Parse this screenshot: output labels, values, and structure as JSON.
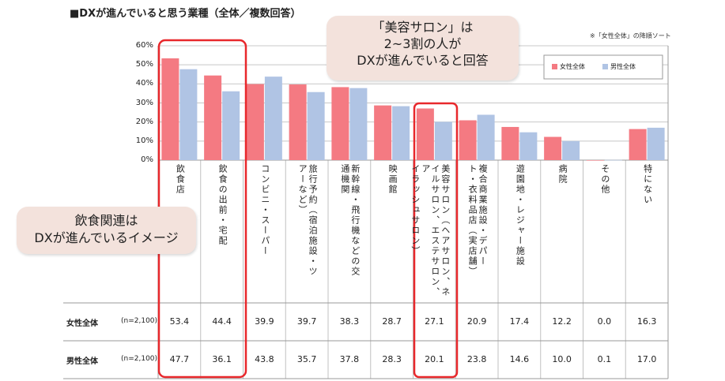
{
  "header": {
    "title": "■DXが進んでいると思う業種（全体／複数回答）",
    "sort_note": "※「女性全体」の降順ソート"
  },
  "callouts": {
    "salon": "「美容サロン」は\n2~3割の人が\nDXが進んでいると回答",
    "food": "飲食関連は\nDXが進んでいるイメージ"
  },
  "chart_data": {
    "type": "bar",
    "categories": [
      "飲食店",
      "飲食の出前・宅配",
      "コンビニ・スーパー",
      "旅行予約（宿泊施設・ツアーなど）",
      "新幹線・飛行機などの交通機関",
      "映画館",
      "美容サロン（ヘアサロン、ネイルサロン、エステサロン、アイラッシュサロン）",
      "複合商業施設・デパート・衣料品店（実店舗）",
      "遊園地・レジャー施設",
      "病院",
      "その他",
      "特にない"
    ],
    "category_columns": [
      [
        "飲食店"
      ],
      [
        "飲食の出前・宅配"
      ],
      [
        "コンビニ・スーパー"
      ],
      [
        "旅行予約（宿泊施設・ツ",
        "アーなど）"
      ],
      [
        "新幹線・飛行機などの交",
        "通機関"
      ],
      [
        "映画館"
      ],
      [
        "美容サロン（ヘアサロン、ネ",
        "イルサロン、エステサロン、ア",
        "イラッシュサロン）"
      ],
      [
        "複合商業施設・デパー",
        "ト・衣料品店（実店舗）"
      ],
      [
        "遊園地・レジャー施設"
      ],
      [
        "病院"
      ],
      [
        "その他"
      ],
      [
        "特にない"
      ]
    ],
    "series": [
      {
        "name": "女性全体",
        "n_label": "(n=2,100)",
        "color": "#f47a82",
        "values": [
          53.4,
          44.4,
          39.9,
          39.7,
          38.3,
          28.7,
          27.1,
          20.9,
          17.4,
          12.2,
          0.0,
          16.3
        ],
        "labels": [
          "53.4",
          "44.4",
          "39.9",
          "39.7",
          "38.3",
          "28.7",
          "27.1",
          "20.9",
          "17.4",
          "12.2",
          "0.0",
          "16.3"
        ]
      },
      {
        "name": "男性全体",
        "n_label": "(n=2,100)",
        "color": "#b0c4e4",
        "values": [
          47.7,
          36.1,
          43.8,
          35.7,
          37.8,
          28.3,
          20.1,
          23.8,
          14.6,
          10.0,
          0.1,
          17.0
        ],
        "labels": [
          "47.7",
          "36.1",
          "43.8",
          "35.7",
          "37.8",
          "28.3",
          "20.1",
          "23.8",
          "14.6",
          "10.0",
          "0.1",
          "17.0"
        ]
      }
    ],
    "yticks": [
      "0%",
      "10%",
      "20%",
      "30%",
      "40%",
      "50%",
      "60%"
    ],
    "ylim": [
      0,
      60
    ],
    "grid": true,
    "legend": "top-right",
    "highlight_color": "#e8282c"
  }
}
